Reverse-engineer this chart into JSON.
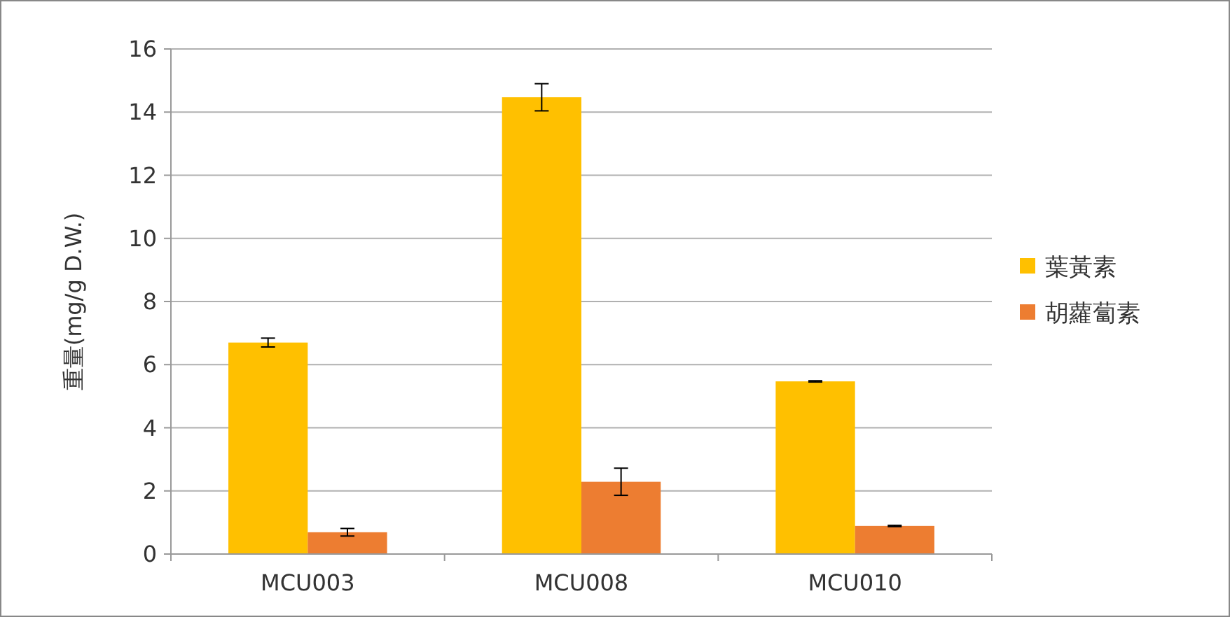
{
  "chart_data": {
    "type": "bar",
    "ylabel": "重量(mg/g D.W.)",
    "categories": [
      "MCU003",
      "MCU008",
      "MCU010"
    ],
    "series": [
      {
        "name": "葉黃素",
        "color": "#ffc000",
        "values": [
          6.7,
          14.47,
          5.47
        ],
        "errors": [
          0.14,
          0.43,
          0.02
        ]
      },
      {
        "name": "胡蘿蔔素",
        "color": "#ed7d31",
        "values": [
          0.69,
          2.29,
          0.89
        ],
        "errors": [
          0.12,
          0.43,
          0.02
        ]
      }
    ],
    "ylim": [
      0,
      16
    ],
    "yticks": [
      0,
      2,
      4,
      6,
      8,
      10,
      12,
      14,
      16
    ],
    "grid": "y",
    "legend": "right"
  }
}
